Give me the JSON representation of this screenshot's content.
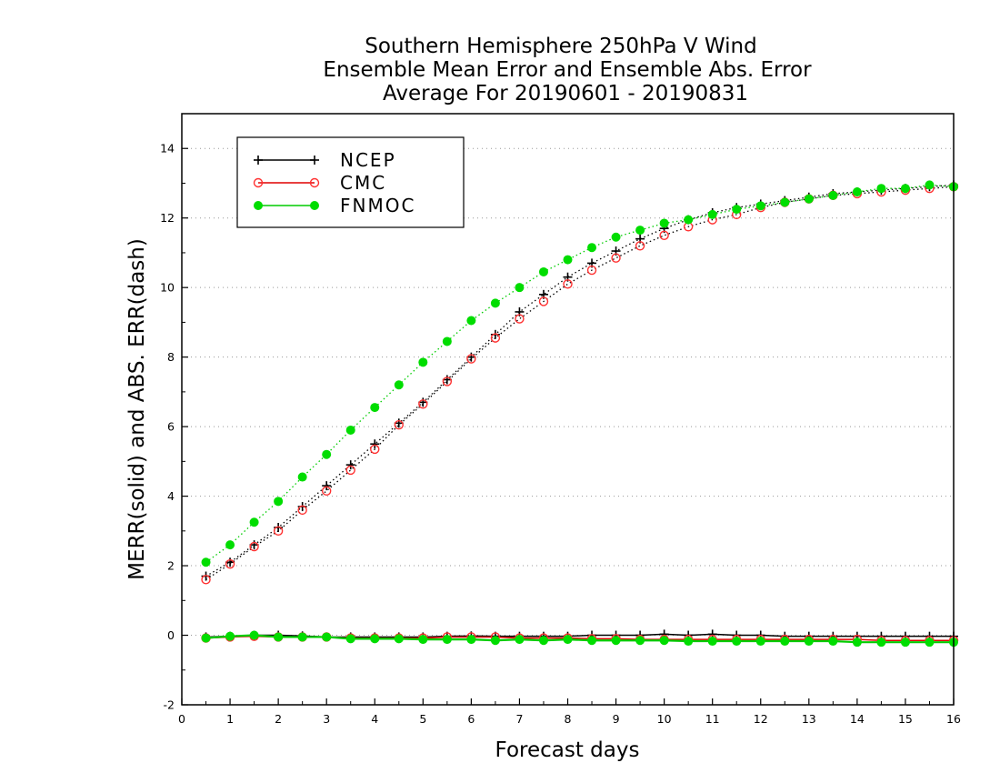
{
  "chart_data": {
    "type": "line",
    "title": [
      "Southern Hemisphere 250hPa V Wind",
      "Ensemble Mean Error and Ensemble Abs. Error",
      "Average For 20190601 - 20190831"
    ],
    "xlabel": "Forecast days",
    "ylabel": "MERR(solid) and ABS. ERR(dash)",
    "xlim": [
      0,
      16
    ],
    "ylim": [
      -2,
      15
    ],
    "xticks": [
      "0",
      "1",
      "2",
      "3",
      "4",
      "5",
      "6",
      "7",
      "8",
      "9",
      "10",
      "11",
      "12",
      "13",
      "14",
      "15",
      "16"
    ],
    "yticks": [
      "-2",
      "0",
      "2",
      "4",
      "6",
      "8",
      "10",
      "12",
      "14"
    ],
    "grid": "horizontal dotted",
    "legend_position": "top-left",
    "x": [
      0.5,
      1,
      1.5,
      2,
      2.5,
      3,
      3.5,
      4,
      4.5,
      5,
      5.5,
      6,
      6.5,
      7,
      7.5,
      8,
      8.5,
      9,
      9.5,
      10,
      10.5,
      11,
      11.5,
      12,
      12.5,
      13,
      13.5,
      14,
      14.5,
      15,
      15.5,
      16
    ],
    "series": [
      {
        "name": "NCEP",
        "color": "#000000",
        "marker": "plus",
        "abs_error": [
          1.7,
          2.1,
          2.6,
          3.1,
          3.7,
          4.3,
          4.9,
          5.5,
          6.1,
          6.7,
          7.35,
          8.0,
          8.65,
          9.3,
          9.8,
          10.3,
          10.7,
          11.05,
          11.4,
          11.7,
          11.95,
          12.15,
          12.3,
          12.4,
          12.5,
          12.6,
          12.7,
          12.75,
          12.8,
          12.85,
          12.9,
          12.95
        ],
        "mean_error": [
          -0.05,
          -0.03,
          0.0,
          0.0,
          -0.02,
          -0.05,
          -0.05,
          -0.05,
          -0.05,
          -0.05,
          -0.03,
          -0.02,
          -0.03,
          -0.03,
          -0.03,
          -0.03,
          0.0,
          0.0,
          0.0,
          0.03,
          0.0,
          0.03,
          0.0,
          0.0,
          -0.03,
          -0.03,
          -0.03,
          -0.03,
          -0.03,
          -0.03,
          -0.03,
          -0.03
        ]
      },
      {
        "name": "CMC",
        "color": "#ff3030",
        "marker": "open-circle",
        "abs_error": [
          1.6,
          2.05,
          2.55,
          3.0,
          3.6,
          4.15,
          4.75,
          5.35,
          6.05,
          6.65,
          7.3,
          7.95,
          8.55,
          9.1,
          9.6,
          10.1,
          10.5,
          10.85,
          11.2,
          11.5,
          11.75,
          11.95,
          12.1,
          12.3,
          12.45,
          12.55,
          12.65,
          12.7,
          12.75,
          12.8,
          12.85,
          12.9
        ],
        "mean_error": [
          -0.08,
          -0.05,
          -0.03,
          -0.05,
          -0.05,
          -0.05,
          -0.08,
          -0.08,
          -0.08,
          -0.08,
          -0.05,
          -0.05,
          -0.05,
          -0.08,
          -0.08,
          -0.08,
          -0.1,
          -0.1,
          -0.12,
          -0.12,
          -0.12,
          -0.12,
          -0.12,
          -0.12,
          -0.12,
          -0.12,
          -0.12,
          -0.12,
          -0.15,
          -0.15,
          -0.15,
          -0.15
        ]
      },
      {
        "name": "FNMOC",
        "color": "#00dd00",
        "marker": "filled-circle",
        "abs_error": [
          2.1,
          2.6,
          3.25,
          3.85,
          4.55,
          5.2,
          5.9,
          6.55,
          7.2,
          7.85,
          8.45,
          9.05,
          9.55,
          10.0,
          10.45,
          10.8,
          11.15,
          11.45,
          11.65,
          11.85,
          11.95,
          12.1,
          12.25,
          12.35,
          12.45,
          12.55,
          12.65,
          12.75,
          12.85,
          12.85,
          12.95,
          12.9
        ],
        "mean_error": [
          -0.08,
          -0.03,
          0.0,
          -0.05,
          -0.05,
          -0.05,
          -0.1,
          -0.1,
          -0.1,
          -0.12,
          -0.12,
          -0.12,
          -0.15,
          -0.12,
          -0.15,
          -0.12,
          -0.15,
          -0.15,
          -0.15,
          -0.15,
          -0.17,
          -0.17,
          -0.17,
          -0.17,
          -0.17,
          -0.17,
          -0.17,
          -0.2,
          -0.2,
          -0.2,
          -0.2,
          -0.2
        ]
      }
    ]
  }
}
